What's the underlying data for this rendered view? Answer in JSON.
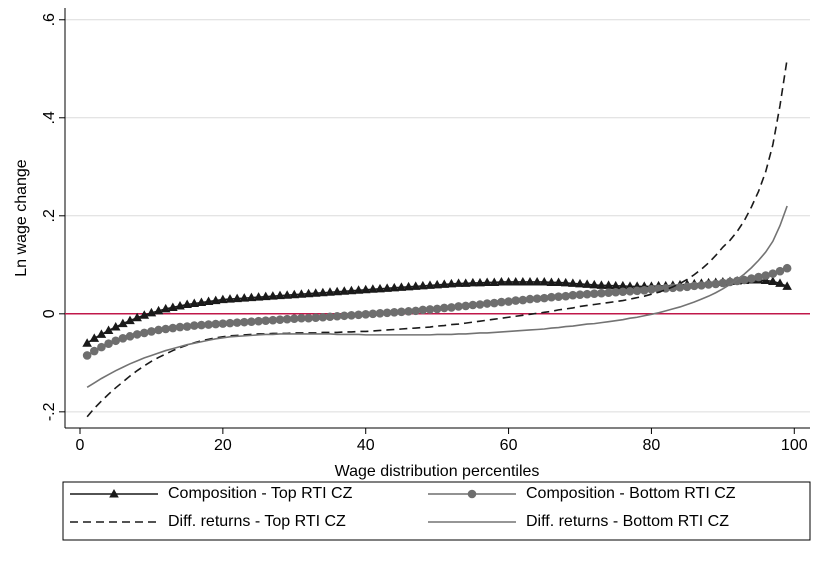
{
  "chart_data": {
    "type": "line",
    "y_label": "Ln wage change",
    "x_label": "Wage distribution percentiles",
    "xlim": [
      -2.1,
      102.2
    ],
    "ylim": [
      -0.233,
      0.624
    ],
    "xticks": [
      0,
      20,
      40,
      60,
      80,
      100
    ],
    "yticks": [
      {
        "value": -0.2,
        "label": "-.2"
      },
      0,
      {
        "value": 0.2,
        "label": ".2"
      },
      {
        "value": 0.4,
        "label": ".4"
      },
      {
        "value": 0.6,
        "label": ".6"
      }
    ],
    "grid": true,
    "reference_line": {
      "value": 0,
      "color": "#c0184a"
    },
    "legend": "bottom",
    "x": [
      1,
      2,
      3,
      4,
      5,
      6,
      7,
      8,
      9,
      10,
      11,
      12,
      13,
      14,
      15,
      16,
      17,
      18,
      19,
      20,
      21,
      22,
      23,
      24,
      25,
      26,
      27,
      28,
      29,
      30,
      31,
      32,
      33,
      34,
      35,
      36,
      37,
      38,
      39,
      40,
      41,
      42,
      43,
      44,
      45,
      46,
      47,
      48,
      49,
      50,
      51,
      52,
      53,
      54,
      55,
      56,
      57,
      58,
      59,
      60,
      61,
      62,
      63,
      64,
      65,
      66,
      67,
      68,
      69,
      70,
      71,
      72,
      73,
      74,
      75,
      76,
      77,
      78,
      79,
      80,
      81,
      82,
      83,
      84,
      85,
      86,
      87,
      88,
      89,
      90,
      91,
      92,
      93,
      94,
      95,
      96,
      97,
      98,
      99
    ],
    "series": [
      {
        "name": "Composition - Top RTI CZ",
        "color": "#1a1a1a",
        "marker": "triangle",
        "dash": false,
        "values": [
          -0.06,
          -0.05,
          -0.042,
          -0.034,
          -0.027,
          -0.02,
          -0.014,
          -0.008,
          -0.003,
          0.002,
          0.006,
          0.01,
          0.013,
          0.016,
          0.019,
          0.021,
          0.023,
          0.025,
          0.027,
          0.029,
          0.03,
          0.031,
          0.032,
          0.033,
          0.034,
          0.035,
          0.036,
          0.037,
          0.038,
          0.039,
          0.04,
          0.041,
          0.042,
          0.043,
          0.044,
          0.045,
          0.046,
          0.047,
          0.048,
          0.049,
          0.05,
          0.051,
          0.052,
          0.053,
          0.054,
          0.055,
          0.056,
          0.057,
          0.058,
          0.059,
          0.06,
          0.061,
          0.062,
          0.062,
          0.063,
          0.063,
          0.064,
          0.064,
          0.065,
          0.065,
          0.065,
          0.065,
          0.065,
          0.065,
          0.065,
          0.064,
          0.064,
          0.063,
          0.062,
          0.061,
          0.06,
          0.059,
          0.058,
          0.058,
          0.057,
          0.057,
          0.056,
          0.056,
          0.056,
          0.056,
          0.057,
          0.057,
          0.058,
          0.059,
          0.06,
          0.061,
          0.062,
          0.063,
          0.064,
          0.065,
          0.066,
          0.067,
          0.068,
          0.069,
          0.069,
          0.068,
          0.066,
          0.062,
          0.056
        ]
      },
      {
        "name": "Composition - Bottom RTI CZ",
        "color": "#6e6e6e",
        "marker": "circle",
        "dash": false,
        "values": [
          -0.085,
          -0.076,
          -0.068,
          -0.061,
          -0.055,
          -0.05,
          -0.046,
          -0.042,
          -0.039,
          -0.036,
          -0.033,
          -0.031,
          -0.029,
          -0.027,
          -0.026,
          -0.024,
          -0.023,
          -0.022,
          -0.021,
          -0.02,
          -0.019,
          -0.018,
          -0.017,
          -0.016,
          -0.015,
          -0.014,
          -0.013,
          -0.012,
          -0.011,
          -0.01,
          -0.009,
          -0.009,
          -0.008,
          -0.007,
          -0.006,
          -0.005,
          -0.004,
          -0.003,
          -0.002,
          -0.001,
          0.0,
          0.001,
          0.002,
          0.003,
          0.004,
          0.005,
          0.006,
          0.008,
          0.009,
          0.01,
          0.012,
          0.013,
          0.015,
          0.016,
          0.018,
          0.019,
          0.021,
          0.022,
          0.024,
          0.025,
          0.027,
          0.028,
          0.03,
          0.031,
          0.032,
          0.034,
          0.035,
          0.036,
          0.038,
          0.039,
          0.04,
          0.041,
          0.042,
          0.043,
          0.044,
          0.045,
          0.046,
          0.047,
          0.048,
          0.05,
          0.051,
          0.052,
          0.053,
          0.054,
          0.055,
          0.057,
          0.058,
          0.06,
          0.061,
          0.063,
          0.065,
          0.067,
          0.069,
          0.072,
          0.075,
          0.078,
          0.082,
          0.087,
          0.093
        ]
      },
      {
        "name": "Diff. returns - Top RTI CZ",
        "color": "#1a1a1a",
        "marker": null,
        "dash": true,
        "values": [
          -0.21,
          -0.193,
          -0.178,
          -0.164,
          -0.151,
          -0.139,
          -0.127,
          -0.116,
          -0.106,
          -0.097,
          -0.089,
          -0.082,
          -0.075,
          -0.069,
          -0.064,
          -0.059,
          -0.055,
          -0.052,
          -0.049,
          -0.047,
          -0.045,
          -0.044,
          -0.043,
          -0.042,
          -0.041,
          -0.041,
          -0.04,
          -0.04,
          -0.04,
          -0.039,
          -0.039,
          -0.039,
          -0.039,
          -0.038,
          -0.038,
          -0.038,
          -0.037,
          -0.037,
          -0.036,
          -0.036,
          -0.035,
          -0.034,
          -0.033,
          -0.032,
          -0.031,
          -0.03,
          -0.029,
          -0.028,
          -0.027,
          -0.025,
          -0.024,
          -0.022,
          -0.021,
          -0.019,
          -0.017,
          -0.015,
          -0.013,
          -0.011,
          -0.009,
          -0.007,
          -0.005,
          -0.003,
          -0.001,
          0.001,
          0.003,
          0.005,
          0.008,
          0.01,
          0.012,
          0.015,
          0.017,
          0.019,
          0.021,
          0.023,
          0.025,
          0.027,
          0.03,
          0.033,
          0.036,
          0.04,
          0.044,
          0.049,
          0.055,
          0.062,
          0.07,
          0.08,
          0.091,
          0.104,
          0.119,
          0.136,
          0.15,
          0.168,
          0.19,
          0.218,
          0.25,
          0.29,
          0.345,
          0.425,
          0.52
        ]
      },
      {
        "name": "Diff. returns - Bottom RTI CZ",
        "color": "#737373",
        "marker": null,
        "dash": false,
        "values": [
          -0.15,
          -0.141,
          -0.132,
          -0.124,
          -0.116,
          -0.109,
          -0.102,
          -0.096,
          -0.09,
          -0.085,
          -0.08,
          -0.075,
          -0.071,
          -0.067,
          -0.063,
          -0.06,
          -0.057,
          -0.054,
          -0.051,
          -0.049,
          -0.047,
          -0.046,
          -0.045,
          -0.044,
          -0.043,
          -0.042,
          -0.042,
          -0.041,
          -0.041,
          -0.041,
          -0.041,
          -0.041,
          -0.041,
          -0.041,
          -0.041,
          -0.042,
          -0.042,
          -0.042,
          -0.042,
          -0.043,
          -0.043,
          -0.043,
          -0.043,
          -0.043,
          -0.043,
          -0.043,
          -0.043,
          -0.043,
          -0.043,
          -0.042,
          -0.042,
          -0.042,
          -0.041,
          -0.041,
          -0.04,
          -0.039,
          -0.039,
          -0.038,
          -0.037,
          -0.036,
          -0.035,
          -0.034,
          -0.033,
          -0.032,
          -0.031,
          -0.029,
          -0.028,
          -0.026,
          -0.025,
          -0.023,
          -0.021,
          -0.02,
          -0.018,
          -0.016,
          -0.014,
          -0.012,
          -0.009,
          -0.007,
          -0.004,
          -0.001,
          0.002,
          0.006,
          0.01,
          0.014,
          0.019,
          0.024,
          0.03,
          0.036,
          0.043,
          0.051,
          0.06,
          0.07,
          0.081,
          0.094,
          0.109,
          0.126,
          0.148,
          0.18,
          0.22
        ]
      }
    ]
  }
}
